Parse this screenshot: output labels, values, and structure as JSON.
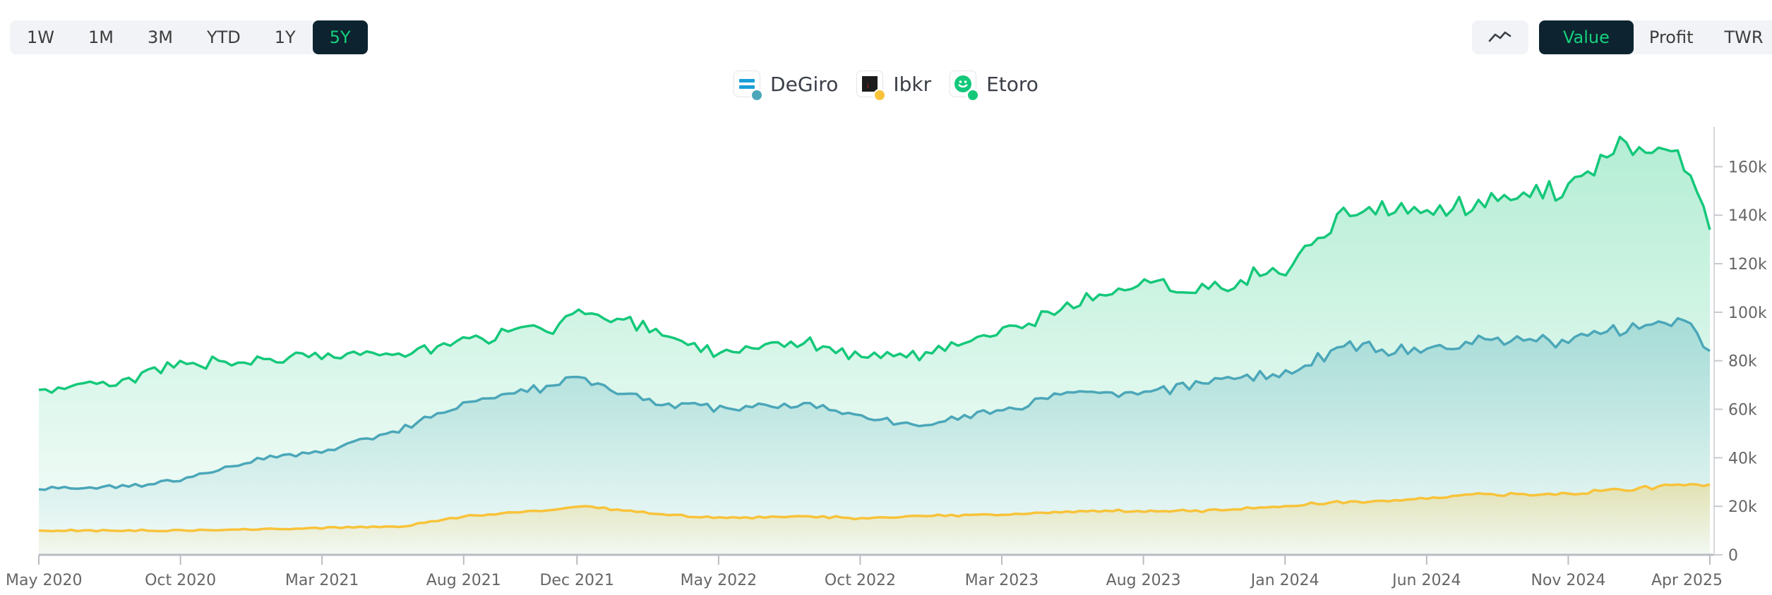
{
  "controls": {
    "ranges": [
      {
        "label": "1W",
        "active": false
      },
      {
        "label": "1M",
        "active": false
      },
      {
        "label": "3M",
        "active": false
      },
      {
        "label": "YTD",
        "active": false
      },
      {
        "label": "1Y",
        "active": false
      },
      {
        "label": "5Y",
        "active": true
      }
    ],
    "chart_type_icon": "line-chart-icon",
    "metrics": [
      {
        "label": "Value",
        "active": true
      },
      {
        "label": "Profit",
        "active": false
      },
      {
        "label": "TWR",
        "active": false
      }
    ]
  },
  "legend": [
    {
      "label": "DeGiro",
      "icon": "degiro-logo-icon",
      "color": "#4ba7b9"
    },
    {
      "label": "Ibkr",
      "icon": "ibkr-logo-icon",
      "color": "#f8c33a"
    },
    {
      "label": "Etoro",
      "icon": "etoro-logo-icon",
      "color": "#14c87a"
    }
  ],
  "chart_data": {
    "type": "area",
    "x_tick_labels": [
      "May 2020",
      "Oct 2020",
      "Mar 2021",
      "Aug 2021",
      "Dec 2021",
      "May 2022",
      "Oct 2022",
      "Mar 2023",
      "Aug 2023",
      "Jan 2024",
      "Jun 2024",
      "Nov 2024",
      "Apr 2025"
    ],
    "y_tick_labels": [
      "0",
      "20k",
      "40k",
      "60k",
      "80k",
      "100k",
      "120k",
      "140k",
      "160k"
    ],
    "ylim": [
      0,
      170000
    ],
    "y_axis_position": "right",
    "grid": false,
    "legend_position": "top-center",
    "x": [
      "2020-05",
      "2020-08",
      "2020-10",
      "2021-01",
      "2021-03",
      "2021-06",
      "2021-08",
      "2021-11",
      "2021-12",
      "2022-03",
      "2022-05",
      "2022-08",
      "2022-10",
      "2022-12",
      "2023-03",
      "2023-06",
      "2023-08",
      "2023-10",
      "2024-01",
      "2024-03",
      "2024-06",
      "2024-08",
      "2024-11",
      "2025-01",
      "2025-03",
      "2025-04"
    ],
    "series": [
      {
        "name": "DeGiro",
        "color": "#4ba7b9",
        "values": [
          27000,
          28000,
          31000,
          40000,
          43000,
          52000,
          63000,
          70000,
          72000,
          63000,
          60000,
          62000,
          57000,
          52000,
          60000,
          68000,
          66000,
          71000,
          74000,
          86000,
          84000,
          89000,
          88000,
          94000,
          98000,
          84000
        ]
      },
      {
        "name": "Ibkr",
        "color": "#f8c33a",
        "values": [
          10000,
          10000,
          10000,
          10500,
          11000,
          12000,
          16000,
          18000,
          20000,
          17000,
          15000,
          16000,
          15000,
          16000,
          16500,
          18000,
          18000,
          18000,
          20000,
          22000,
          23000,
          25000,
          25000,
          27000,
          29000,
          29000
        ]
      },
      {
        "name": "Etoro",
        "color": "#14c87a",
        "values": [
          68000,
          72000,
          79000,
          80000,
          82000,
          83000,
          88000,
          93000,
          101000,
          92000,
          82000,
          87000,
          82000,
          82000,
          92000,
          106000,
          110000,
          110000,
          118000,
          142000,
          140000,
          146000,
          152000,
          168000,
          166000,
          134000
        ]
      }
    ]
  }
}
